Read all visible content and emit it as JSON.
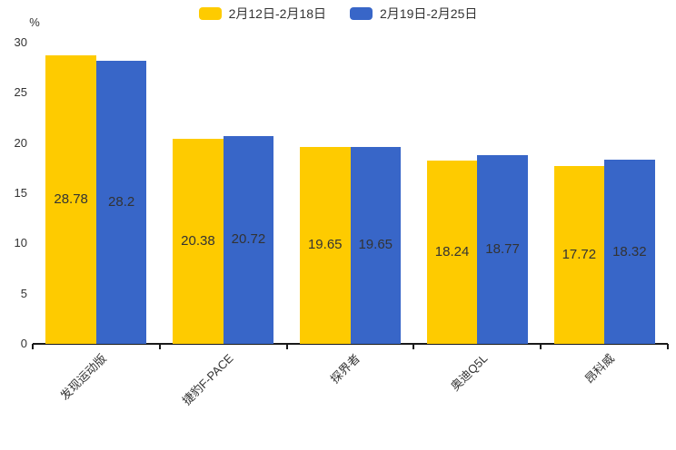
{
  "chart_data": {
    "type": "bar",
    "title": "",
    "unit_label": "%",
    "categories": [
      "发现运动版",
      "捷豹F-PACE",
      "探界者",
      "奥迪Q5L",
      "昂科威"
    ],
    "series": [
      {
        "name": "2月12日-2月18日",
        "color": "#FECB00",
        "values": [
          28.78,
          20.38,
          19.65,
          18.24,
          17.72
        ]
      },
      {
        "name": "2月19日-2月25日",
        "color": "#3866C8",
        "values": [
          28.2,
          20.72,
          19.65,
          18.77,
          18.32
        ]
      }
    ],
    "ylim": [
      0,
      30
    ],
    "yticks": [
      0,
      5,
      10,
      15,
      20,
      25,
      30
    ],
    "grid": false,
    "legend_position": "top",
    "value_labels": "inside-center",
    "label_color": "#333333",
    "axis_color": "#1a1a1a"
  }
}
